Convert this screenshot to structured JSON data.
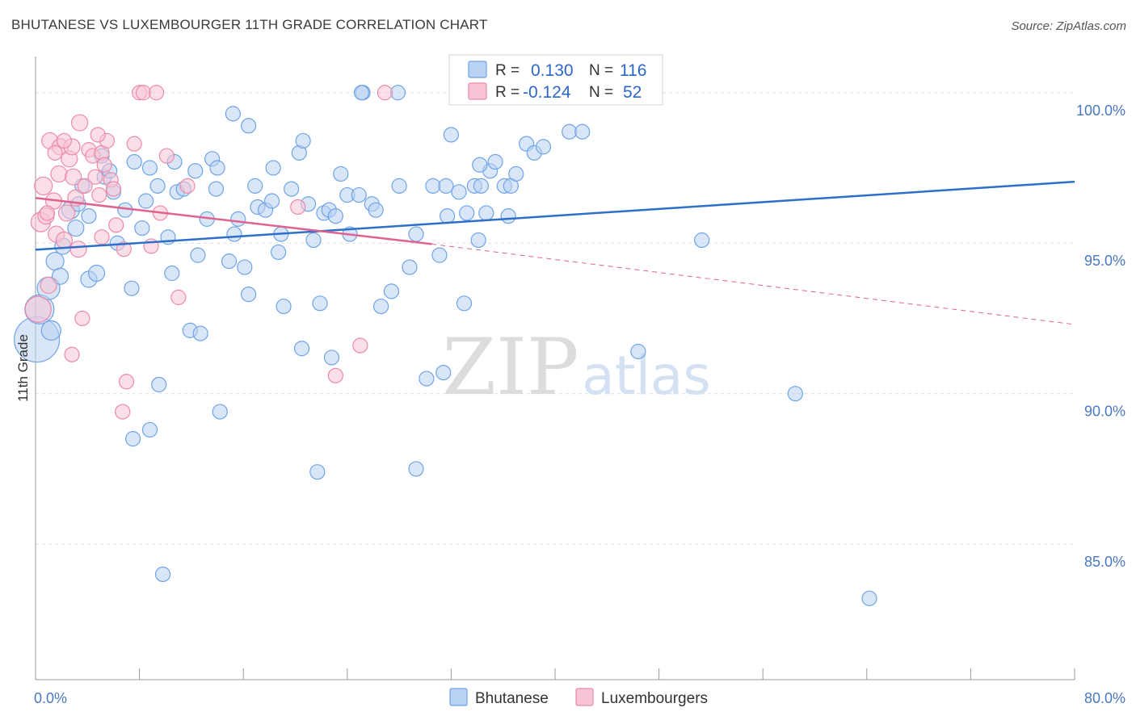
{
  "title": "BHUTANESE VS LUXEMBOURGER 11TH GRADE CORRELATION CHART",
  "source": "Source: ZipAtlas.com",
  "watermark": {
    "zip": "ZIP",
    "atlas": "atlas"
  },
  "colors": {
    "blue": "#6fa4e6",
    "blue_fill": "#b9d2f3",
    "blue_line": "#2e6fc9",
    "pink": "#eb8aab",
    "pink_fill": "#f7c4d4",
    "pink_line": "#e0628e",
    "tick_text": "#4a78c2",
    "grid": "#d9dde3"
  },
  "legend_stats": [
    {
      "r_label": "R =",
      "r_value": "0.130",
      "n_label": "N =",
      "n_value": "116"
    },
    {
      "r_label": "R =",
      "r_value": "-0.124",
      "n_label": "N =",
      "n_value": "52"
    }
  ],
  "chart_data": {
    "type": "scatter",
    "title": "BHUTANESE VS LUXEMBOURGER 11TH GRADE CORRELATION CHART",
    "xlabel": "",
    "ylabel": "11th Grade",
    "xlim": [
      0,
      80
    ],
    "ylim": [
      80.5,
      101.2
    ],
    "x_tick_labels": [
      {
        "value": 0,
        "label": "0.0%"
      },
      {
        "value": 80,
        "label": "80.0%"
      }
    ],
    "y_tick_labels": [
      {
        "value": 85,
        "label": "85.0%"
      },
      {
        "value": 90,
        "label": "90.0%"
      },
      {
        "value": 95,
        "label": "95.0%"
      },
      {
        "value": 100,
        "label": "100.0%"
      }
    ],
    "x_minor_ticks": [
      8,
      16,
      24,
      32,
      40,
      48,
      56,
      64,
      72,
      80
    ],
    "grid": true,
    "legend": "bottom-center",
    "series": [
      {
        "name": "Bhutanese",
        "color": "#6fa4e6",
        "r": 0.13,
        "n": 116,
        "trend": {
          "x0": 0,
          "y0": 94.78,
          "x1": 80,
          "y1": 97.04
        },
        "points": [
          [
            0.1,
            91.8,
            28
          ],
          [
            0.3,
            92.8,
            18
          ],
          [
            1.0,
            93.5,
            14
          ],
          [
            1.2,
            92.1,
            12
          ],
          [
            1.5,
            94.4,
            11
          ],
          [
            1.9,
            93.9,
            10
          ],
          [
            2.1,
            94.9,
            10
          ],
          [
            2.7,
            96.1,
            11
          ],
          [
            3.1,
            95.5,
            10
          ],
          [
            3.6,
            96.9,
            9
          ],
          [
            3.3,
            96.3,
            9
          ],
          [
            4.1,
            95.9,
            9
          ],
          [
            4.1,
            93.8,
            10
          ],
          [
            4.7,
            94.0,
            10
          ],
          [
            5.1,
            97.9,
            9
          ],
          [
            5.3,
            97.2,
            9
          ],
          [
            5.7,
            97.4,
            9
          ],
          [
            6.0,
            96.7,
            9
          ],
          [
            6.3,
            95.0,
            9
          ],
          [
            6.9,
            96.1,
            9
          ],
          [
            7.4,
            93.5,
            9
          ],
          [
            7.6,
            97.7,
            9
          ],
          [
            8.2,
            95.5,
            9
          ],
          [
            8.5,
            96.4,
            9
          ],
          [
            8.8,
            97.5,
            9
          ],
          [
            9.4,
            96.9,
            9
          ],
          [
            10.2,
            95.2,
            9
          ],
          [
            10.5,
            94.0,
            9
          ],
          [
            10.7,
            97.7,
            9
          ],
          [
            10.9,
            96.7,
            9
          ],
          [
            11.4,
            96.8,
            9
          ],
          [
            11.9,
            92.1,
            9
          ],
          [
            12.3,
            97.4,
            9
          ],
          [
            12.5,
            94.6,
            9
          ],
          [
            12.7,
            92.0,
            9
          ],
          [
            13.2,
            95.8,
            9
          ],
          [
            13.6,
            97.8,
            9
          ],
          [
            13.9,
            96.8,
            9
          ],
          [
            14.0,
            97.5,
            9
          ],
          [
            14.9,
            94.4,
            9
          ],
          [
            15.2,
            99.3,
            9
          ],
          [
            15.6,
            95.8,
            9
          ],
          [
            15.3,
            95.3,
            9
          ],
          [
            16.1,
            94.2,
            9
          ],
          [
            16.4,
            93.3,
            9
          ],
          [
            17.1,
            96.2,
            9
          ],
          [
            16.9,
            96.9,
            9
          ],
          [
            17.7,
            96.1,
            9
          ],
          [
            18.2,
            96.4,
            9
          ],
          [
            18.3,
            97.5,
            9
          ],
          [
            18.7,
            94.7,
            9
          ],
          [
            18.9,
            95.3,
            9
          ],
          [
            19.1,
            92.9,
            9
          ],
          [
            19.7,
            96.8,
            9
          ],
          [
            20.3,
            98.0,
            9
          ],
          [
            20.6,
            98.4,
            9
          ],
          [
            21.0,
            96.3,
            9
          ],
          [
            21.4,
            95.1,
            9
          ],
          [
            21.9,
            93.0,
            9
          ],
          [
            22.2,
            96.0,
            9
          ],
          [
            22.6,
            96.1,
            9
          ],
          [
            22.8,
            91.2,
            9
          ],
          [
            23.1,
            95.9,
            9
          ],
          [
            23.5,
            97.3,
            9
          ],
          [
            24.0,
            96.6,
            9
          ],
          [
            24.2,
            95.3,
            9
          ],
          [
            25.2,
            100.0,
            9
          ],
          [
            25.9,
            96.3,
            9
          ],
          [
            26.2,
            96.1,
            9
          ],
          [
            26.6,
            92.9,
            9
          ],
          [
            27.4,
            93.4,
            9
          ],
          [
            27.9,
            100.0,
            9
          ],
          [
            28.8,
            94.2,
            9
          ],
          [
            29.3,
            95.3,
            9
          ],
          [
            30.1,
            90.5,
            9
          ],
          [
            30.6,
            96.9,
            9
          ],
          [
            31.1,
            94.6,
            9
          ],
          [
            31.6,
            96.9,
            9
          ],
          [
            31.7,
            95.9,
            9
          ],
          [
            32.0,
            98.6,
            9
          ],
          [
            32.6,
            96.7,
            9
          ],
          [
            33.0,
            93.0,
            9
          ],
          [
            33.2,
            96.0,
            9
          ],
          [
            33.8,
            96.9,
            9
          ],
          [
            34.3,
            96.9,
            9
          ],
          [
            34.7,
            96.0,
            9
          ],
          [
            35.0,
            97.4,
            9
          ],
          [
            35.4,
            97.7,
            9
          ],
          [
            36.1,
            96.9,
            9
          ],
          [
            36.4,
            95.9,
            9
          ],
          [
            36.6,
            96.9,
            9
          ],
          [
            37.0,
            97.3,
            9
          ],
          [
            37.8,
            98.3,
            9
          ],
          [
            38.4,
            98.0,
            9
          ],
          [
            39.1,
            98.2,
            9
          ],
          [
            41.1,
            98.7,
            9
          ],
          [
            42.1,
            98.7,
            9
          ],
          [
            46.4,
            91.4,
            9
          ],
          [
            51.3,
            95.1,
            9
          ],
          [
            58.5,
            90.0,
            9
          ],
          [
            8.8,
            88.8,
            9
          ],
          [
            7.5,
            88.5,
            9
          ],
          [
            9.5,
            90.3,
            9
          ],
          [
            9.8,
            84.0,
            9
          ],
          [
            14.2,
            89.4,
            9
          ],
          [
            21.7,
            87.4,
            9
          ],
          [
            29.3,
            87.5,
            9
          ],
          [
            64.2,
            83.2,
            9
          ],
          [
            25.1,
            100.0,
            9
          ],
          [
            28.0,
            96.9,
            9
          ],
          [
            34.1,
            95.1,
            9
          ],
          [
            34.2,
            97.6,
            9
          ],
          [
            20.5,
            91.5,
            9
          ],
          [
            24.9,
            96.6,
            9
          ],
          [
            31.4,
            90.7,
            9
          ],
          [
            16.4,
            98.9,
            9
          ]
        ]
      },
      {
        "name": "Luxembourgers",
        "color": "#eb8aab",
        "r": -0.124,
        "n": 52,
        "trend": {
          "x0": 0,
          "y0": 96.5,
          "x1": 30.5,
          "y1": 94.97
        },
        "trend_extension": {
          "x0": 30.5,
          "y0": 94.97,
          "x1": 80,
          "y1": 92.3
        },
        "points": [
          [
            0.2,
            92.8,
            16
          ],
          [
            0.4,
            95.7,
            12
          ],
          [
            0.6,
            96.9,
            11
          ],
          [
            0.8,
            95.9,
            10
          ],
          [
            1.0,
            93.6,
            10
          ],
          [
            1.1,
            98.4,
            10
          ],
          [
            1.4,
            96.4,
            10
          ],
          [
            1.6,
            95.3,
            10
          ],
          [
            1.8,
            97.3,
            10
          ],
          [
            1.9,
            98.2,
            10
          ],
          [
            2.2,
            95.1,
            10
          ],
          [
            2.4,
            96.0,
            10
          ],
          [
            2.6,
            97.8,
            10
          ],
          [
            2.8,
            98.2,
            10
          ],
          [
            2.9,
            97.2,
            10
          ],
          [
            3.1,
            96.5,
            10
          ],
          [
            3.3,
            94.8,
            10
          ],
          [
            3.4,
            99.0,
            10
          ],
          [
            3.6,
            92.5,
            9
          ],
          [
            3.8,
            96.9,
            9
          ],
          [
            4.1,
            98.1,
            9
          ],
          [
            4.4,
            97.9,
            9
          ],
          [
            4.6,
            97.2,
            9
          ],
          [
            4.9,
            96.6,
            9
          ],
          [
            5.1,
            98.0,
            9
          ],
          [
            5.3,
            97.6,
            9
          ],
          [
            5.5,
            98.4,
            9
          ],
          [
            5.8,
            97.1,
            9
          ],
          [
            6.0,
            96.8,
            9
          ],
          [
            6.2,
            95.6,
            9
          ],
          [
            6.8,
            94.8,
            9
          ],
          [
            7.0,
            90.4,
            9
          ],
          [
            7.6,
            98.3,
            9
          ],
          [
            8.0,
            100.0,
            9
          ],
          [
            8.3,
            100.0,
            9
          ],
          [
            8.9,
            94.9,
            9
          ],
          [
            9.3,
            100.0,
            9
          ],
          [
            9.6,
            96.0,
            9
          ],
          [
            10.1,
            97.9,
            9
          ],
          [
            11.0,
            93.2,
            9
          ],
          [
            11.7,
            96.9,
            9
          ],
          [
            20.2,
            96.2,
            9
          ],
          [
            23.1,
            90.6,
            9
          ],
          [
            25.0,
            91.6,
            9
          ],
          [
            26.9,
            100.0,
            9
          ],
          [
            6.7,
            89.4,
            9
          ],
          [
            2.8,
            91.3,
            9
          ],
          [
            1.5,
            98.0,
            9
          ],
          [
            0.9,
            96.0,
            9
          ],
          [
            5.1,
            95.2,
            9
          ],
          [
            4.8,
            98.6,
            9
          ],
          [
            2.2,
            98.4,
            9
          ]
        ]
      }
    ]
  }
}
